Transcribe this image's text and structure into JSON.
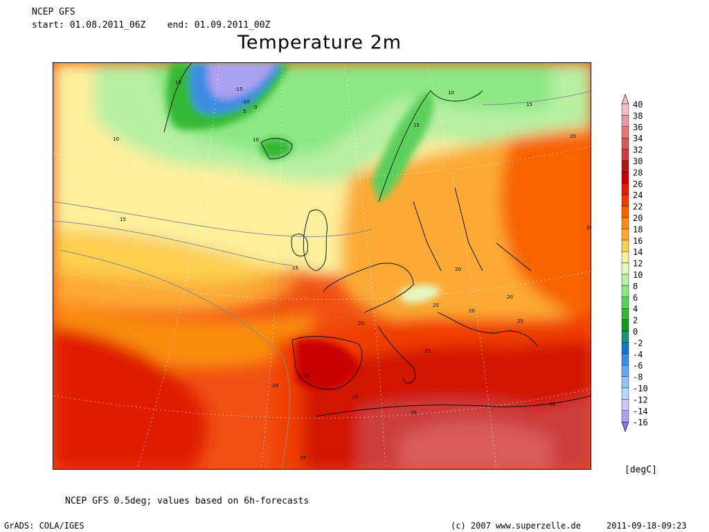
{
  "header": {
    "model": "NCEP GFS",
    "period": "start: 01.08.2011_06Z    end: 01.09.2011_00Z",
    "title": "Temperature 2m"
  },
  "legend": {
    "unit": "[degC]",
    "levels": [
      {
        "label": "40",
        "color": "#f4c0c8"
      },
      {
        "label": "38",
        "color": "#e89aa0"
      },
      {
        "label": "36",
        "color": "#e07878"
      },
      {
        "label": "34",
        "color": "#d85c5c"
      },
      {
        "label": "32",
        "color": "#cc3c3c"
      },
      {
        "label": "30",
        "color": "#b41414"
      },
      {
        "label": "28",
        "color": "#c80000"
      },
      {
        "label": "26",
        "color": "#e01c00"
      },
      {
        "label": "24",
        "color": "#f03c00"
      },
      {
        "label": "22",
        "color": "#f86400"
      },
      {
        "label": "20",
        "color": "#fa8c10"
      },
      {
        "label": "18",
        "color": "#fcaa34"
      },
      {
        "label": "16",
        "color": "#fcd050"
      },
      {
        "label": "14",
        "color": "#fcf09c"
      },
      {
        "label": "12",
        "color": "#e4f8c4"
      },
      {
        "label": "10",
        "color": "#b8f0a4"
      },
      {
        "label": "8",
        "color": "#8ce884"
      },
      {
        "label": "6",
        "color": "#5cd05c"
      },
      {
        "label": "4",
        "color": "#34b834"
      },
      {
        "label": "2",
        "color": "#149c1c"
      },
      {
        "label": "0",
        "color": "#1c9478"
      },
      {
        "label": "-2",
        "color": "#1c74c8"
      },
      {
        "label": "-4",
        "color": "#3c8ce4"
      },
      {
        "label": "-6",
        "color": "#64a8f0"
      },
      {
        "label": "-8",
        "color": "#8cc4f8"
      },
      {
        "label": "-10",
        "color": "#b4d8f8"
      },
      {
        "label": "-12",
        "color": "#c8ccf4"
      },
      {
        "label": "-14",
        "color": "#aca0f0"
      },
      {
        "label": "-16",
        "color": "#8c74e8"
      }
    ]
  },
  "contour_labels": [
    "-15",
    "-10",
    "5",
    "0",
    "10",
    "10",
    "10",
    "10",
    "15",
    "15",
    "15",
    "20",
    "20",
    "20",
    "20",
    "20",
    "20",
    "20",
    "25",
    "25",
    "25",
    "25",
    "25",
    "25",
    "30",
    "30",
    "15"
  ],
  "footer": {
    "note": "NCEP GFS 0.5deg; values based on 6h-forecasts",
    "software": "GrADS: COLA/IGES",
    "copyright": "(c) 2007 www.superzelle.de",
    "timestamp": "2011-09-18-09:23"
  }
}
